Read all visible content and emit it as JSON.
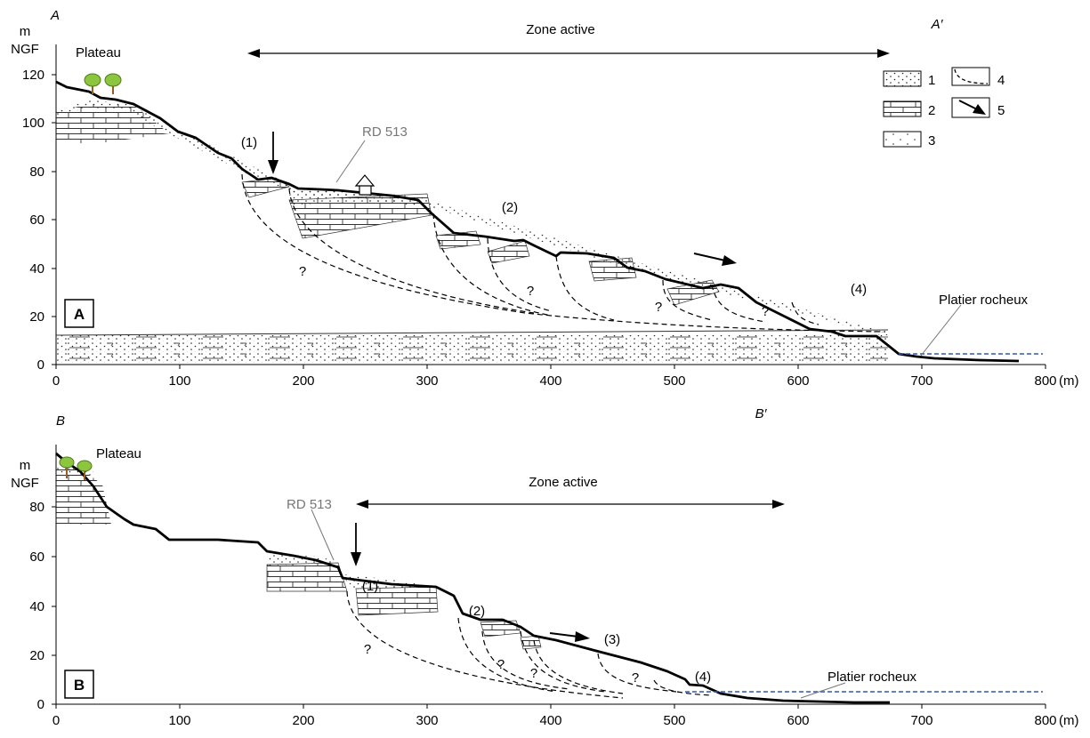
{
  "colors": {
    "ground_line": "#000000",
    "tree_crown": "#8cc63f",
    "tree_trunk": "#9c5a1c",
    "sea_line": "#3355aa",
    "annotation_gray": "#777777"
  },
  "legend": {
    "items": [
      {
        "key": "1",
        "pattern": "dots-dense"
      },
      {
        "key": "2",
        "pattern": "limestone-bricks"
      },
      {
        "key": "3",
        "pattern": "dots-sparse"
      },
      {
        "key": "4",
        "pattern": "dashed-slip-surface"
      },
      {
        "key": "5",
        "pattern": "movement-arrow"
      }
    ]
  },
  "panel_a": {
    "label": "A",
    "section_start": "A",
    "section_end": "A′",
    "y_unit_line1": "m",
    "y_unit_line2": "NGF",
    "plateau": "Plateau",
    "zone_active": "Zone  active",
    "road": "RD 513",
    "platier": "Platier rocheux",
    "markers": [
      "(1)",
      "(2)",
      "(4)"
    ],
    "unknown_mark": "?",
    "x_unit": "(m)",
    "x_ticks": [
      "0",
      "100",
      "200",
      "300",
      "400",
      "500",
      "600",
      "700",
      "800"
    ],
    "y_ticks": [
      "0",
      "20",
      "40",
      "60",
      "80",
      "100",
      "120"
    ]
  },
  "panel_b": {
    "label": "B",
    "section_start": "B",
    "section_end": "B′",
    "y_unit_line1": "m",
    "y_unit_line2": "NGF",
    "plateau": "Plateau",
    "zone_active": "Zone  active",
    "road": "RD 513",
    "platier": "Platier rocheux",
    "markers": [
      "(1)",
      "(2)",
      "(3)",
      "(4)"
    ],
    "unknown_mark": "?",
    "x_unit": "(m)",
    "x_ticks": [
      "0",
      "100",
      "200",
      "300",
      "400",
      "500",
      "600",
      "700",
      "800"
    ],
    "y_ticks": [
      "0",
      "20",
      "40",
      "60",
      "80"
    ]
  }
}
